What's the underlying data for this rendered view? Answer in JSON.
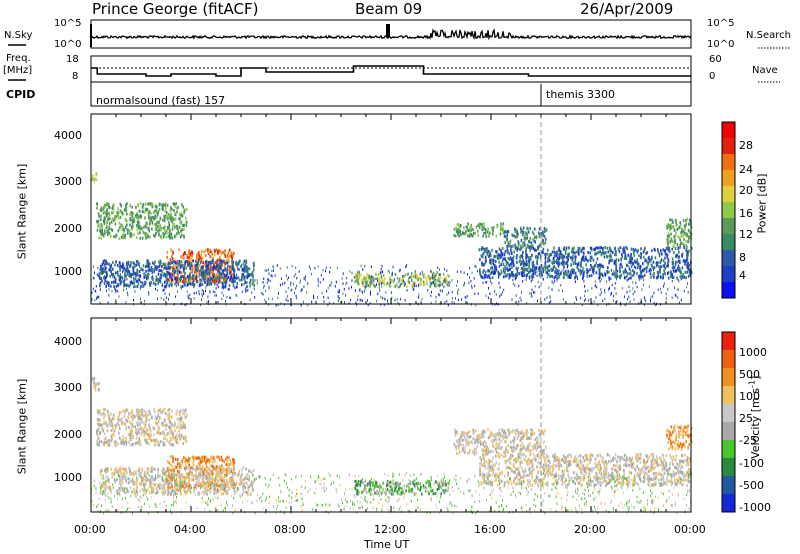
{
  "header": {
    "station": "Prince George (fitACF)",
    "beam": "Beam 09",
    "date": "26/Apr/2009"
  },
  "sky_panel": {
    "left_label": "N.Sky",
    "right_label": "N.Search",
    "left_ticks": [
      "10^5",
      "10^0"
    ],
    "right_ticks": [
      "10^5",
      "10^0"
    ]
  },
  "freq_panel": {
    "left_label_top": "Freq.",
    "left_label_unit": "[MHz]",
    "left_ticks": [
      "18",
      "8"
    ],
    "right_ticks": [
      "60",
      "0"
    ],
    "right_label": "Nave"
  },
  "cpid_panel": {
    "label": "CPID",
    "program_1": "normalsound (fast) 157",
    "program_2": "themis 3300"
  },
  "chart_data": [
    {
      "type": "heatmap",
      "name": "power",
      "ylabel": "Slant Range [km]",
      "yticks": [
        "4000",
        "3000",
        "2000",
        "1000"
      ],
      "ylim": [
        180,
        4500
      ],
      "xlim_hours": [
        0,
        24
      ],
      "colorbar_label": "Power [dB]",
      "colorbar_ticks": [
        "28",
        "24",
        "20",
        "16",
        "12",
        "8",
        "4"
      ],
      "colorbar_colors": [
        "#0b10f2",
        "#1e3ec8",
        "#2c5ba8",
        "#3a8a66",
        "#5a9a5a",
        "#8fc94a",
        "#e0d040",
        "#f0a020",
        "#f07010",
        "#e02010",
        "#f00000"
      ],
      "echo_regions": [
        {
          "t0": 0.0,
          "t1": 0.2,
          "r0": 2900,
          "r1": 3200,
          "level": 6
        },
        {
          "t0": 0.2,
          "t1": 3.8,
          "r0": 1700,
          "r1": 2500,
          "level": 4
        },
        {
          "t0": 3.0,
          "t1": 5.7,
          "r0": 700,
          "r1": 1450,
          "level": 8
        },
        {
          "t0": 0.3,
          "t1": 6.5,
          "r0": 600,
          "r1": 1200,
          "level": 2
        },
        {
          "t0": 10.5,
          "t1": 14.3,
          "r0": 600,
          "r1": 900,
          "level": 5
        },
        {
          "t0": 14.5,
          "t1": 16.5,
          "r0": 1750,
          "r1": 2050,
          "level": 4
        },
        {
          "t0": 16.5,
          "t1": 18.2,
          "r0": 1500,
          "r1": 1950,
          "level": 3
        },
        {
          "t0": 15.5,
          "t1": 24.0,
          "r0": 800,
          "r1": 1500,
          "level": 2
        },
        {
          "t0": 23.0,
          "t1": 24.0,
          "r0": 1500,
          "r1": 2150,
          "level": 4
        }
      ]
    },
    {
      "type": "heatmap",
      "name": "velocity",
      "ylabel": "Slant Range [km]",
      "yticks": [
        "4000",
        "3000",
        "2000",
        "1000"
      ],
      "ylim": [
        180,
        4500
      ],
      "xlim_hours": [
        0,
        24
      ],
      "colorbar_label": "Velocity [m s",
      "colorbar_label_sup": "-1",
      "colorbar_label_end": "]",
      "colorbar_ticks": [
        "1000",
        "500",
        "100",
        "25",
        "-25",
        "-100",
        "-500",
        "-1000"
      ],
      "colorbar_colors": [
        "#1428d8",
        "#1e5aa0",
        "#2a8a40",
        "#46c62a",
        "#a8a8a8",
        "#c8c8c8",
        "#f0c060",
        "#f09020",
        "#f06010",
        "#f02010"
      ],
      "echo_regions": [
        {
          "t0": 0.0,
          "t1": 0.3,
          "r0": 2900,
          "r1": 3200,
          "level": 5
        },
        {
          "t0": 0.2,
          "t1": 3.8,
          "r0": 1700,
          "r1": 2500,
          "level": 5
        },
        {
          "t0": 3.0,
          "t1": 5.7,
          "r0": 700,
          "r1": 1450,
          "level": 7
        },
        {
          "t0": 0.3,
          "t1": 6.5,
          "r0": 600,
          "r1": 1200,
          "level": 5
        },
        {
          "t0": 10.5,
          "t1": 14.3,
          "r0": 600,
          "r1": 900,
          "level": 3
        },
        {
          "t0": 14.5,
          "t1": 18.2,
          "r0": 1500,
          "r1": 2050,
          "level": 5
        },
        {
          "t0": 15.5,
          "t1": 24.0,
          "r0": 800,
          "r1": 1500,
          "level": 5
        },
        {
          "t0": 23.0,
          "t1": 24.0,
          "r0": 1600,
          "r1": 2150,
          "level": 7
        }
      ]
    }
  ],
  "x_axis": {
    "ticks": [
      "00:00",
      "04:00",
      "08:00",
      "12:00",
      "16:00",
      "20:00",
      "00:00"
    ],
    "label": "Time UT"
  },
  "frequency_trace": [
    {
      "t": 0.0,
      "mhz": 14
    },
    {
      "t": 0.25,
      "mhz": 11
    },
    {
      "t": 2.2,
      "mhz": 10
    },
    {
      "t": 3.2,
      "mhz": 11
    },
    {
      "t": 5.0,
      "mhz": 10
    },
    {
      "t": 6.0,
      "mhz": 14
    },
    {
      "t": 7.0,
      "mhz": 12
    },
    {
      "t": 10.5,
      "mhz": 15
    },
    {
      "t": 13.3,
      "mhz": 11
    },
    {
      "t": 15.0,
      "mhz": 11
    },
    {
      "t": 17.5,
      "mhz": 10
    },
    {
      "t": 24.0,
      "mhz": 10
    }
  ],
  "themis_start_hours": 18.0
}
